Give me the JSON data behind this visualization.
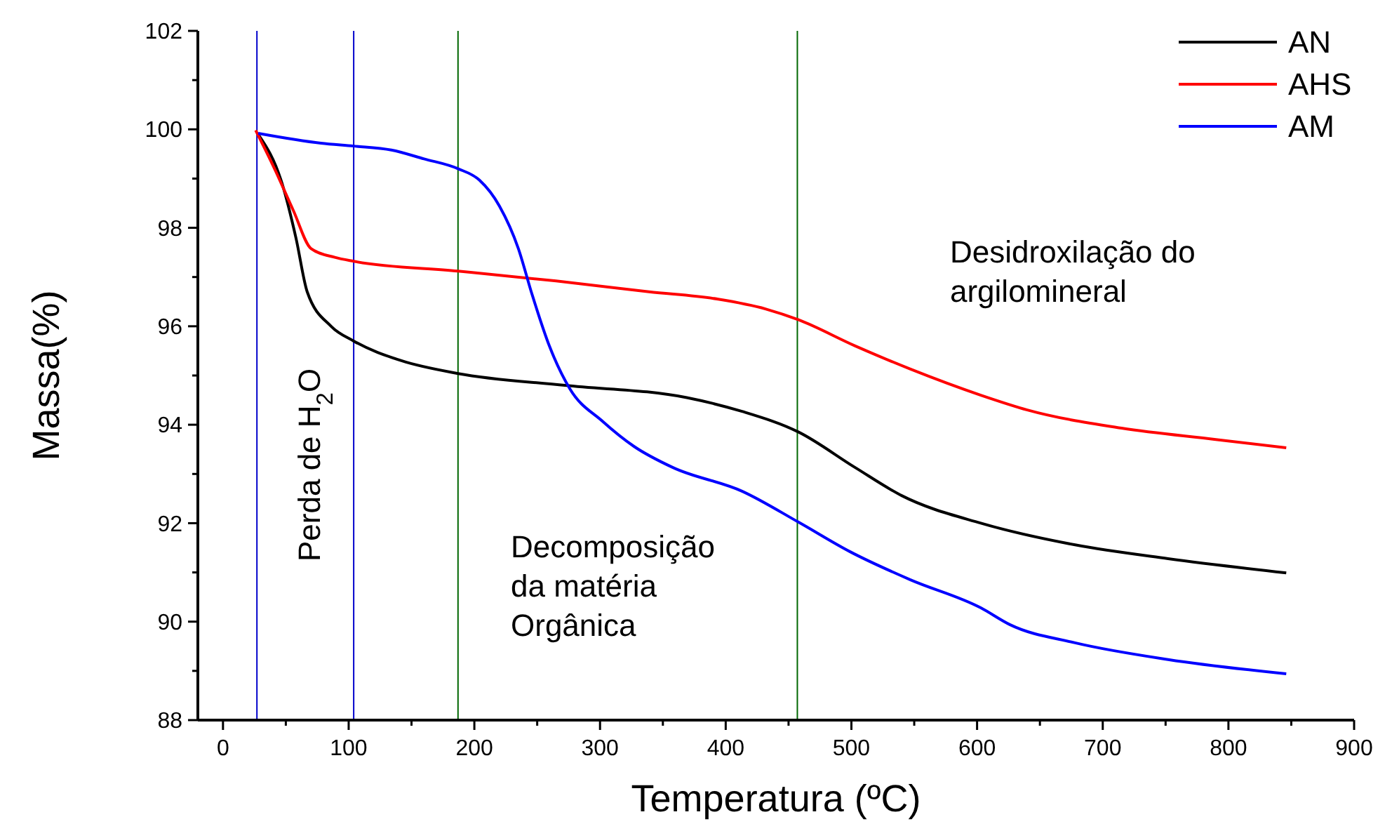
{
  "chart_data": {
    "type": "line",
    "xlabel": "Temperatura (ºC)",
    "ylabel": "Massa(%)",
    "xlim": [
      -20,
      900
    ],
    "ylim": [
      88,
      102
    ],
    "xticks": [
      0,
      {
        "value": 50,
        "label": null
      },
      100,
      {
        "value": 150,
        "label": null
      },
      200,
      {
        "value": 250,
        "label": null
      },
      300,
      {
        "value": 350,
        "label": null
      },
      400,
      {
        "value": 450,
        "label": null
      },
      500,
      {
        "value": 550,
        "label": null
      },
      600,
      {
        "value": 650,
        "label": null
      },
      700,
      {
        "value": 750,
        "label": null
      },
      800,
      {
        "value": 850,
        "label": null
      },
      900
    ],
    "yticks": [
      88,
      {
        "value": 89,
        "label": null
      },
      90,
      {
        "value": 91,
        "label": null
      },
      92,
      {
        "value": 93,
        "label": null
      },
      94,
      {
        "value": 95,
        "label": null
      },
      96,
      {
        "value": 97,
        "label": null
      },
      98,
      {
        "value": 99,
        "label": null
      },
      100,
      {
        "value": 101,
        "label": null
      },
      102
    ],
    "grid": false,
    "legend": "top right",
    "line_style": "solid",
    "marker": "none",
    "series": [
      {
        "name": "AN",
        "color": "#000000",
        "x": [
          28,
          47,
          58,
          67,
          86,
          104,
          142,
          187,
          272,
          369,
          413,
          458,
          503,
          540,
          603,
          678,
          752,
          846
        ],
        "values": [
          99.9,
          98.9,
          97.8,
          96.7,
          96.0,
          95.7,
          95.3,
          95.04,
          94.8,
          94.55,
          94.27,
          93.85,
          93.13,
          92.56,
          92.0,
          91.56,
          91.28,
          90.99
        ]
      },
      {
        "name": "AHS",
        "color": "#ff0000",
        "x": [
          26,
          41,
          56,
          70,
          89,
          104,
          187,
          265,
          339,
          394,
          432,
          458,
          503,
          547,
          603,
          640,
          715,
          790,
          846
        ],
        "values": [
          99.98,
          99.2,
          98.35,
          97.58,
          97.4,
          97.32,
          97.12,
          96.92,
          96.7,
          96.55,
          96.35,
          96.13,
          95.6,
          95.13,
          94.6,
          94.3,
          93.93,
          93.7,
          93.53
        ]
      },
      {
        "name": "AM",
        "color": "#0000ff",
        "x": [
          28,
          78,
          104,
          134,
          160,
          187,
          204,
          220,
          235,
          246,
          260,
          276,
          302,
          327,
          358,
          413,
          458,
          499,
          547,
          603,
          626,
          678,
          752,
          846
        ],
        "values": [
          99.92,
          99.72,
          99.66,
          99.58,
          99.4,
          99.2,
          98.97,
          98.44,
          97.58,
          96.64,
          95.58,
          94.73,
          94.07,
          93.56,
          93.13,
          92.65,
          92.02,
          91.42,
          90.85,
          90.28,
          89.94,
          89.57,
          89.23,
          88.94
        ]
      }
    ],
    "ref_lines": [
      {
        "axis": "x",
        "value": 27,
        "color": "#0000cc"
      },
      {
        "axis": "x",
        "value": 104,
        "color": "#0000cc"
      },
      {
        "axis": "x",
        "value": 187,
        "color": "#006600"
      },
      {
        "axis": "x",
        "value": 457,
        "color": "#006600"
      }
    ],
    "annotations": [
      "Perda de H$_{2}$O",
      "Decomposição\nda matéria\nOrgânica",
      "Desidroxilação do\nargilomineral"
    ]
  }
}
